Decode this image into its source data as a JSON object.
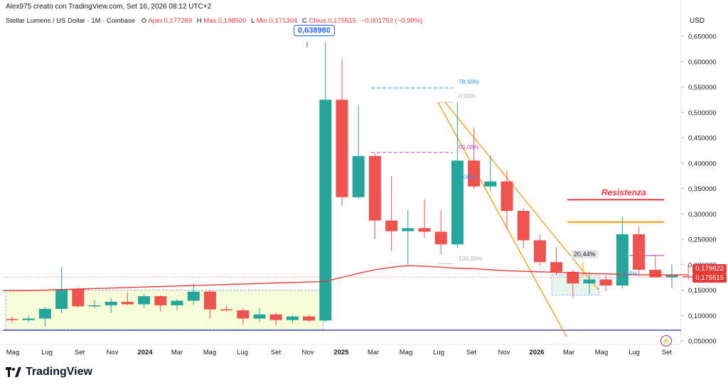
{
  "header": {
    "attribution": "Alex975 creato con TradingView.com, Set 16, 2026 08:12 UTC+2",
    "symbol": "Stellar Lumens / US Dollar · 1M · Coinbase",
    "ohlc": [
      {
        "label": "O",
        "value": "Aper.0,177269"
      },
      {
        "label": "H",
        "value": "Max.0,198500"
      },
      {
        "label": "L",
        "value": "Min.0,171304"
      },
      {
        "label": "C",
        "value": "Chius.0,175515"
      },
      {
        "label": "",
        "value": "−0,001753 (−0,99%)"
      }
    ]
  },
  "axis": {
    "currency": "USD",
    "price_labels": [
      "0,650000",
      "0,600000",
      "0,550000",
      "0,500000",
      "0,450000",
      "0,400000",
      "0,350000",
      "0,300000",
      "0,250000",
      "0,200000",
      "0,150000",
      "0,100000",
      "0,050000"
    ],
    "time_labels": [
      "Mag",
      "Lug",
      "Set",
      "Nov",
      "2024",
      "Mar",
      "Mag",
      "Lug",
      "Set",
      "Nov",
      "2025",
      "Mar",
      "Mag",
      "Lug",
      "Set",
      "Nov",
      "2026",
      "Mar",
      "Mag",
      "Lug",
      "Set"
    ]
  },
  "annotations": {
    "high_label": "0,638980",
    "resistance": "Resistenza",
    "pct_box": "20,44%",
    "fib_786": "78,60%",
    "fib_0": "0,00%",
    "fib_50": "50,00%",
    "fib_0b": "0,00%",
    "fib_100": "100,00%",
    "fib_786b": "78,6%"
  },
  "price_tags": {
    "ma": "0,179822",
    "last": "0,175515"
  },
  "colors": {
    "up": "#26a69a",
    "down": "#ef5350",
    "ma": "#e53935",
    "resistance": "#f23645",
    "orange": "#ff9800",
    "navy": "#3f51b5",
    "fib_blue": "#2196f3",
    "fib_magenta": "#c040c0"
  },
  "brand": "TradingView",
  "chart_data": {
    "type": "candlestick",
    "title": "Stellar Lumens / US Dollar · 1M · Coinbase",
    "ylim": [
      0.05,
      0.67
    ],
    "categories": [
      "Apr 23",
      "Mag 23",
      "Giu 23",
      "Lug 23",
      "Ago 23",
      "Set 23",
      "Ott 23",
      "Nov 23",
      "Dic 23",
      "Gen 24",
      "Feb 24",
      "Mar 24",
      "Apr 24",
      "Mag 24",
      "Giu 24",
      "Lug 24",
      "Ago 24",
      "Set 24",
      "Ott 24",
      "Nov 24",
      "Dic 24",
      "Gen 25",
      "Feb 25",
      "Mar 25",
      "Apr 25",
      "Mag 25",
      "Giu 25",
      "Lug 25",
      "Ago 25",
      "Set 25",
      "Ott 25",
      "Nov 25",
      "Dic 25",
      "Gen 26",
      "Feb 26",
      "Mar 26",
      "Apr 26",
      "Mag 26",
      "Giu 26",
      "Lug 26",
      "Ago 26",
      "Set 26"
    ],
    "series": [
      {
        "name": "OHLC",
        "values": [
          [
            0.093,
            0.098,
            0.086,
            0.091
          ],
          [
            0.091,
            0.1,
            0.087,
            0.094
          ],
          [
            0.094,
            0.117,
            0.078,
            0.113
          ],
          [
            0.113,
            0.196,
            0.105,
            0.152
          ],
          [
            0.152,
            0.155,
            0.115,
            0.118
          ],
          [
            0.118,
            0.13,
            0.115,
            0.12
          ],
          [
            0.12,
            0.134,
            0.105,
            0.127
          ],
          [
            0.127,
            0.146,
            0.12,
            0.122
          ],
          [
            0.122,
            0.143,
            0.115,
            0.138
          ],
          [
            0.138,
            0.14,
            0.108,
            0.12
          ],
          [
            0.12,
            0.132,
            0.11,
            0.129
          ],
          [
            0.129,
            0.163,
            0.121,
            0.147
          ],
          [
            0.147,
            0.15,
            0.094,
            0.112
          ],
          [
            0.112,
            0.12,
            0.108,
            0.11
          ],
          [
            0.11,
            0.114,
            0.082,
            0.094
          ],
          [
            0.094,
            0.115,
            0.087,
            0.102
          ],
          [
            0.102,
            0.106,
            0.08,
            0.091
          ],
          [
            0.091,
            0.101,
            0.085,
            0.098
          ],
          [
            0.098,
            0.101,
            0.088,
            0.09
          ],
          [
            0.09,
            0.639,
            0.087,
            0.525
          ],
          [
            0.525,
            0.605,
            0.315,
            0.333
          ],
          [
            0.333,
            0.514,
            0.33,
            0.414
          ],
          [
            0.414,
            0.419,
            0.25,
            0.287
          ],
          [
            0.287,
            0.375,
            0.227,
            0.266
          ],
          [
            0.266,
            0.308,
            0.2,
            0.272
          ],
          [
            0.272,
            0.329,
            0.253,
            0.265
          ],
          [
            0.265,
            0.308,
            0.22,
            0.24
          ],
          [
            0.24,
            0.52,
            0.233,
            0.405
          ],
          [
            0.405,
            0.47,
            0.35,
            0.354
          ],
          [
            0.354,
            0.415,
            0.345,
            0.364
          ],
          [
            0.364,
            0.386,
            0.27,
            0.306
          ],
          [
            0.306,
            0.312,
            0.232,
            0.248
          ],
          [
            0.248,
            0.259,
            0.198,
            0.205
          ],
          [
            0.205,
            0.235,
            0.18,
            0.186
          ],
          [
            0.186,
            0.19,
            0.135,
            0.163
          ],
          [
            0.163,
            0.185,
            0.142,
            0.171
          ],
          [
            0.171,
            0.179,
            0.148,
            0.159
          ],
          [
            0.159,
            0.295,
            0.153,
            0.26
          ],
          [
            0.26,
            0.275,
            0.18,
            0.19
          ],
          [
            0.19,
            0.22,
            0.175,
            0.175
          ],
          [
            0.175,
            0.2,
            0.154,
            0.18
          ],
          [
            0.177,
            0.199,
            0.171,
            0.176
          ]
        ]
      }
    ],
    "ma": [
      0.149,
      0.149,
      0.15,
      0.151,
      0.152,
      0.153,
      0.154,
      0.155,
      0.156,
      0.157,
      0.158,
      0.159,
      0.16,
      0.161,
      0.162,
      0.163,
      0.164,
      0.165,
      0.166,
      0.167,
      0.175,
      0.183,
      0.19,
      0.195,
      0.198,
      0.197,
      0.195,
      0.193,
      0.192,
      0.19,
      0.188,
      0.187,
      0.186,
      0.185,
      0.184,
      0.183,
      0.182,
      0.181,
      0.18,
      0.18,
      0.18,
      0.18
    ],
    "levels": {
      "resistance": 0.328,
      "orange_line": 0.284,
      "navy_support": 0.071,
      "purple_line": 0.218
    }
  }
}
